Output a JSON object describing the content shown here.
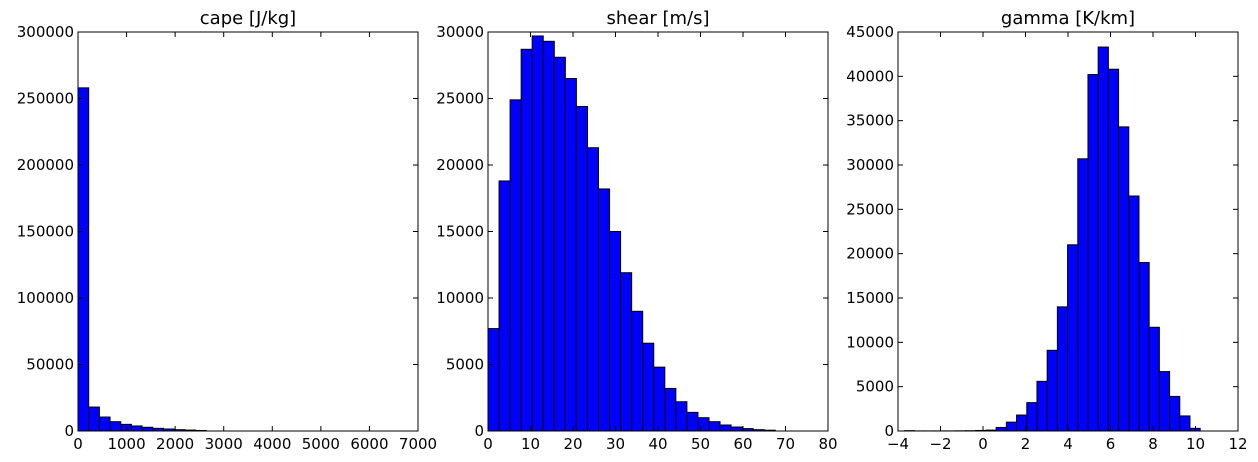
{
  "chart_data": [
    {
      "type": "bar",
      "title": "cape [J/kg]",
      "xlim": [
        0,
        7000
      ],
      "ylim": [
        0,
        300000
      ],
      "xticks": [
        0,
        1000,
        2000,
        3000,
        4000,
        5000,
        6000,
        7000
      ],
      "yticks": [
        0,
        50000,
        100000,
        150000,
        200000,
        250000,
        300000
      ],
      "xtick_labels": [
        "0",
        "1000",
        "2000",
        "3000",
        "4000",
        "5000",
        "6000",
        "7000"
      ],
      "ytick_labels": [
        "0",
        "50000",
        "100000",
        "150000",
        "200000",
        "250000",
        "300000"
      ],
      "bin_start": 0,
      "bin_width": 220,
      "values": [
        258000,
        18000,
        10500,
        7000,
        5000,
        3800,
        2800,
        2000,
        1500,
        1000,
        700,
        400
      ]
    },
    {
      "type": "bar",
      "title": "shear [m/s]",
      "xlim": [
        0,
        80
      ],
      "ylim": [
        0,
        30000
      ],
      "xticks": [
        0,
        10,
        20,
        30,
        40,
        50,
        60,
        70,
        80
      ],
      "yticks": [
        0,
        5000,
        10000,
        15000,
        20000,
        25000,
        30000
      ],
      "xtick_labels": [
        "0",
        "10",
        "20",
        "30",
        "40",
        "50",
        "60",
        "70",
        "80"
      ],
      "ytick_labels": [
        "0",
        "5000",
        "10000",
        "15000",
        "20000",
        "25000",
        "30000"
      ],
      "bin_start": 0,
      "bin_width": 2.6,
      "values": [
        7700,
        18800,
        24900,
        28700,
        29700,
        29300,
        28100,
        26500,
        24400,
        21300,
        18200,
        15000,
        11900,
        9000,
        6600,
        4800,
        3200,
        2200,
        1400,
        1000,
        700,
        450,
        300,
        180,
        100,
        60
      ]
    },
    {
      "type": "bar",
      "title": "gamma [K/km]",
      "xlim": [
        -4,
        12
      ],
      "ylim": [
        0,
        45000
      ],
      "xticks": [
        -4,
        -2,
        0,
        2,
        4,
        6,
        8,
        10,
        12
      ],
      "yticks": [
        0,
        5000,
        10000,
        15000,
        20000,
        25000,
        30000,
        35000,
        40000,
        45000
      ],
      "xtick_labels": [
        "−4",
        "−2",
        "0",
        "2",
        "4",
        "6",
        "8",
        "10",
        "12"
      ],
      "ytick_labels": [
        "0",
        "5000",
        "10000",
        "15000",
        "20000",
        "25000",
        "30000",
        "35000",
        "40000",
        "45000"
      ],
      "bin_start": -3.7,
      "bin_width": 0.48,
      "values": [
        40,
        10,
        10,
        10,
        10,
        20,
        30,
        60,
        100,
        400,
        1000,
        1800,
        3200,
        5600,
        9100,
        14000,
        21000,
        30700,
        40200,
        43300,
        40800,
        34300,
        26500,
        19000,
        11700,
        6700,
        3900,
        1700,
        300
      ]
    }
  ]
}
